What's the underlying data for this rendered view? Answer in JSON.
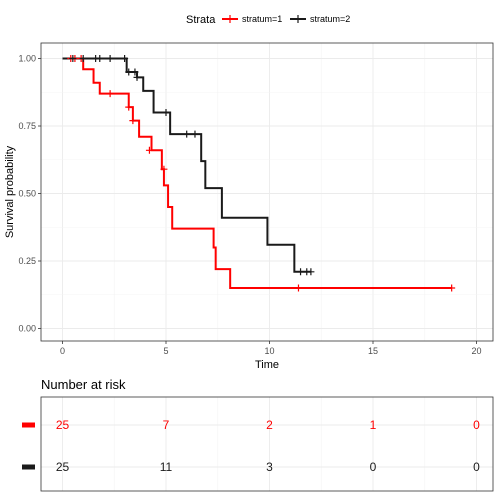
{
  "chart_data": {
    "type": "line",
    "subtype": "kaplan-meier",
    "xlabel": "Time",
    "ylabel": "Survival probability",
    "xlim": [
      0,
      20
    ],
    "ylim": [
      0,
      1
    ],
    "x_ticks": [
      0,
      5,
      10,
      15,
      20
    ],
    "y_ticks": [
      0,
      0.25,
      0.5,
      0.75,
      1
    ],
    "y_tick_labels": [
      "0.00",
      "0.25",
      "0.50",
      "0.75",
      "1.00"
    ],
    "grid": true,
    "legend": {
      "title": "Strata",
      "position": "top",
      "entries": [
        "stratum=1",
        "stratum=2"
      ]
    },
    "series": [
      {
        "name": "stratum=1",
        "color": "#ff0000",
        "steps": [
          [
            0,
            1.0
          ],
          [
            1.0,
            0.96
          ],
          [
            1.5,
            0.91
          ],
          [
            1.8,
            0.87
          ],
          [
            3.2,
            0.82
          ],
          [
            3.4,
            0.77
          ],
          [
            3.7,
            0.71
          ],
          [
            4.3,
            0.66
          ],
          [
            4.8,
            0.59
          ],
          [
            4.9,
            0.53
          ],
          [
            5.1,
            0.45
          ],
          [
            5.3,
            0.37
          ],
          [
            7.3,
            0.3
          ],
          [
            7.4,
            0.22
          ],
          [
            8.1,
            0.15
          ],
          [
            18.8,
            0.15
          ]
        ],
        "censored": [
          [
            0.4,
            1.0
          ],
          [
            0.6,
            1.0
          ],
          [
            0.9,
            1.0
          ],
          [
            2.3,
            0.87
          ],
          [
            3.2,
            0.82
          ],
          [
            3.4,
            0.77
          ],
          [
            4.2,
            0.66
          ],
          [
            4.9,
            0.59
          ],
          [
            11.4,
            0.15
          ],
          [
            18.8,
            0.15
          ]
        ]
      },
      {
        "name": "stratum=2",
        "color": "#1a1a1a",
        "steps": [
          [
            0,
            1.0
          ],
          [
            3.1,
            0.95
          ],
          [
            3.6,
            0.93
          ],
          [
            3.9,
            0.88
          ],
          [
            4.4,
            0.8
          ],
          [
            5.2,
            0.72
          ],
          [
            6.7,
            0.62
          ],
          [
            6.9,
            0.52
          ],
          [
            7.7,
            0.41
          ],
          [
            9.9,
            0.31
          ],
          [
            11.2,
            0.21
          ],
          [
            12.0,
            0.21
          ]
        ],
        "censored": [
          [
            0.5,
            1.0
          ],
          [
            1.0,
            1.0
          ],
          [
            1.6,
            1.0
          ],
          [
            1.8,
            1.0
          ],
          [
            2.3,
            1.0
          ],
          [
            3.0,
            1.0
          ],
          [
            3.2,
            0.95
          ],
          [
            3.5,
            0.95
          ],
          [
            3.6,
            0.93
          ],
          [
            5.0,
            0.8
          ],
          [
            6.0,
            0.72
          ],
          [
            6.4,
            0.72
          ],
          [
            11.5,
            0.21
          ],
          [
            11.8,
            0.21
          ],
          [
            12.0,
            0.21
          ]
        ]
      }
    ],
    "risk_table": {
      "title": "Number at risk",
      "times": [
        0,
        5,
        10,
        15,
        20
      ],
      "rows": [
        {
          "stratum": "stratum=1",
          "color": "#ff0000",
          "values": [
            "25",
            "7",
            "2",
            "1",
            "0"
          ]
        },
        {
          "stratum": "stratum=2",
          "color": "#1a1a1a",
          "values": [
            "25",
            "11",
            "3",
            "0",
            "0"
          ]
        }
      ]
    }
  }
}
